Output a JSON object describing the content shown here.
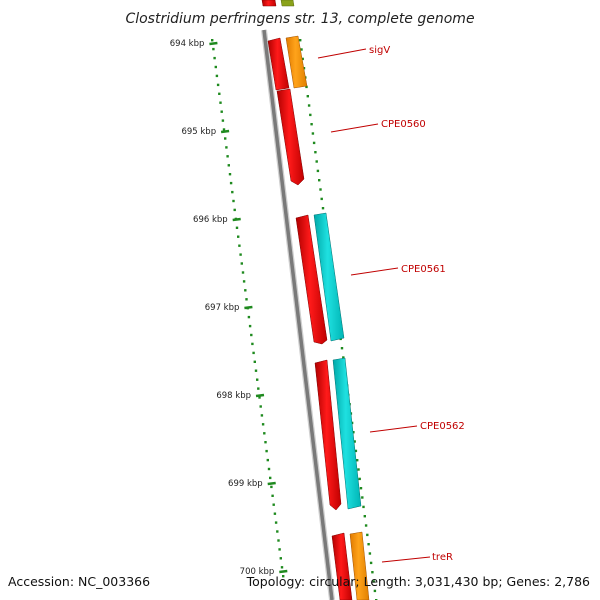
{
  "title": "Clostridium perfringens str. 13, complete genome",
  "accession": "Accession: NC_003366",
  "topology": "Topology: circular; Length: 3,031,430 bp; Genes: 2,786",
  "ticks": [
    "694 kbp",
    "695 kbp",
    "696 kbp",
    "697 kbp",
    "698 kbp",
    "699 kbp",
    "700 kbp"
  ],
  "gene_labels": [
    "sigV",
    "CPE0560",
    "CPE0561",
    "CPE0562",
    "treR"
  ],
  "colors": {
    "red": "#ff0000",
    "orange": "#ff9900",
    "cyan": "#00cccc",
    "green_dot": "#1f8a1f",
    "backbone": "#777777",
    "label_red": "#c00000",
    "olive": "#8aa21a"
  }
}
